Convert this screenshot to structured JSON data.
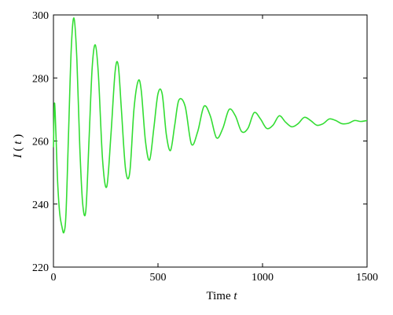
{
  "chart_data": {
    "type": "line",
    "title": "",
    "xlabel": "Time",
    "xlabel_var": "t",
    "ylabel": "I",
    "ylabel_paren_open": "(",
    "ylabel_var": "t",
    "ylabel_paren_close": ")",
    "xlim": [
      0,
      1500
    ],
    "ylim": [
      220,
      300
    ],
    "xticks": [
      0,
      500,
      1000,
      1500
    ],
    "yticks": [
      220,
      240,
      260,
      280,
      300
    ],
    "grid": false,
    "legend": "none",
    "series": [
      {
        "color": "#33dd33",
        "x": [
          0,
          5,
          12,
          20,
          30,
          40,
          50,
          60,
          72,
          85,
          98,
          112,
          126,
          140,
          155,
          170,
          185,
          200,
          215,
          235,
          255,
          275,
          295,
          310,
          325,
          345,
          365,
          385,
          405,
          420,
          440,
          460,
          480,
          500,
          520,
          540,
          560,
          580,
          600,
          630,
          660,
          690,
          720,
          750,
          780,
          810,
          840,
          870,
          900,
          930,
          960,
          990,
          1020,
          1050,
          1080,
          1110,
          1140,
          1170,
          1200,
          1230,
          1260,
          1290,
          1320,
          1350,
          1380,
          1410,
          1440,
          1470,
          1500
        ],
        "y": [
          258,
          272,
          262,
          247,
          237,
          233,
          231,
          237,
          262,
          289,
          299,
          286,
          258,
          240,
          238,
          260,
          283,
          290.5,
          281,
          254,
          245.5,
          262,
          282,
          284,
          270,
          251,
          250,
          270,
          279,
          276,
          260,
          254,
          264,
          275,
          275,
          262,
          257,
          265,
          273,
          271,
          259,
          263,
          271,
          268,
          261,
          264,
          270,
          268,
          263,
          264,
          269,
          267,
          264,
          265,
          268,
          266,
          264.5,
          265.5,
          267.5,
          266.5,
          265,
          265.5,
          267,
          266.5,
          265.5,
          265.6,
          266.5,
          266.2,
          266.5
        ]
      }
    ]
  }
}
